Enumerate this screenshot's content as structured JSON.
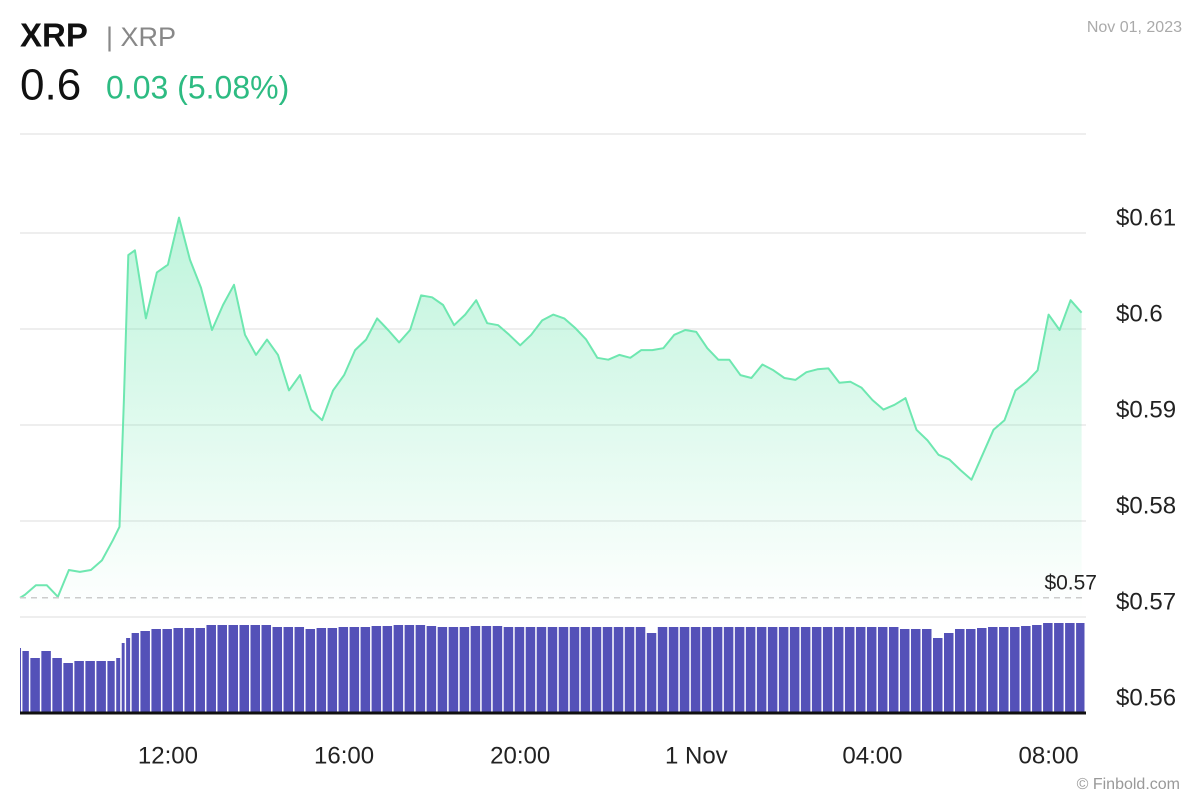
{
  "chart_data": {
    "type": "line",
    "title": "XRP",
    "subtitle": "| XRP",
    "price": "0.6",
    "change": "0.03 (5.08%)",
    "date": "Nov 01, 2023",
    "credit": "© Finbold.com",
    "color": "#6ee7b0",
    "volume_color": "#5451b8",
    "x": [
      8.64,
      8.75,
      9.0,
      9.25,
      9.5,
      9.75,
      10.0,
      10.25,
      10.5,
      10.75,
      10.9,
      11.0,
      11.1,
      11.25,
      11.5,
      11.75,
      12.0,
      12.25,
      12.5,
      12.75,
      13.0,
      13.25,
      13.5,
      13.75,
      14.0,
      14.25,
      14.5,
      14.75,
      15.0,
      15.25,
      15.5,
      15.75,
      16.0,
      16.25,
      16.5,
      16.75,
      17.0,
      17.25,
      17.5,
      17.75,
      18.0,
      18.25,
      18.5,
      18.75,
      19.0,
      19.25,
      19.5,
      19.75,
      20.0,
      20.25,
      20.5,
      20.75,
      21.0,
      21.25,
      21.5,
      21.75,
      22.0,
      22.25,
      22.5,
      22.75,
      23.0,
      23.25,
      23.5,
      23.75,
      24.0,
      24.25,
      24.5,
      24.75,
      25.0,
      25.25,
      25.5,
      25.75,
      26.0,
      26.25,
      26.5,
      26.75,
      27.0,
      27.25,
      27.5,
      27.75,
      28.0,
      28.25,
      28.5,
      28.75,
      29.0,
      29.25,
      29.5,
      29.75,
      30.0,
      30.25,
      30.5,
      30.75,
      31.0,
      31.25,
      31.5,
      31.75,
      32.0,
      32.25,
      32.5,
      32.75
    ],
    "values": [
      0.572,
      0.5723,
      0.5733,
      0.5733,
      0.5721,
      0.5749,
      0.5747,
      0.5749,
      0.5759,
      0.578,
      0.5794,
      0.5926,
      0.6077,
      0.6082,
      0.6011,
      0.6059,
      0.6067,
      0.6116,
      0.6072,
      0.6043,
      0.5999,
      0.6025,
      0.6046,
      0.5994,
      0.5973,
      0.5989,
      0.5973,
      0.5936,
      0.5952,
      0.5916,
      0.5905,
      0.5936,
      0.5952,
      0.5978,
      0.5989,
      0.6011,
      0.5999,
      0.5986,
      0.5999,
      0.6035,
      0.6033,
      0.6025,
      0.6004,
      0.6015,
      0.603,
      0.6006,
      0.6004,
      0.5994,
      0.5983,
      0.5994,
      0.6009,
      0.6015,
      0.6011,
      0.6001,
      0.5989,
      0.597,
      0.5968,
      0.5973,
      0.597,
      0.5978,
      0.5978,
      0.598,
      0.5994,
      0.5999,
      0.5997,
      0.598,
      0.5968,
      0.5968,
      0.5952,
      0.5949,
      0.5963,
      0.5957,
      0.5949,
      0.5947,
      0.5955,
      0.5958,
      0.5959,
      0.5944,
      0.5945,
      0.5939,
      0.5926,
      0.5916,
      0.5921,
      0.5928,
      0.5895,
      0.5884,
      0.5869,
      0.5864,
      0.5853,
      0.5843,
      0.5869,
      0.5895,
      0.5905,
      0.5936,
      0.5945,
      0.5957,
      0.6015,
      0.5999,
      0.603,
      0.6017
    ],
    "volume": [
      65,
      62,
      55,
      62,
      55,
      50,
      52,
      52,
      52,
      52,
      55,
      70,
      75,
      80,
      82,
      84,
      84,
      85,
      85,
      85,
      88,
      88,
      88,
      88,
      88,
      88,
      86,
      86,
      86,
      84,
      85,
      85,
      86,
      86,
      86,
      87,
      87,
      88,
      88,
      88,
      87,
      86,
      86,
      86,
      87,
      87,
      87,
      86,
      86,
      86,
      86,
      86,
      86,
      86,
      86,
      86,
      86,
      86,
      86,
      86,
      80,
      86,
      86,
      86,
      86,
      86,
      86,
      86,
      86,
      86,
      86,
      86,
      86,
      86,
      86,
      86,
      86,
      86,
      86,
      86,
      86,
      86,
      86,
      84,
      84,
      84,
      75,
      80,
      84,
      84,
      85,
      86,
      86,
      86,
      87,
      88,
      90,
      90,
      90,
      90
    ],
    "vlim": [
      0,
      100
    ],
    "xlim": [
      8.64,
      32.85
    ],
    "xticks": [
      {
        "value": 12,
        "label": "12:00"
      },
      {
        "value": 16,
        "label": "16:00"
      },
      {
        "value": 20,
        "label": "20:00"
      },
      {
        "value": 24,
        "label": "1 Nov"
      },
      {
        "value": 28,
        "label": "04:00"
      },
      {
        "value": 32,
        "label": "08:00"
      }
    ],
    "ylim": [
      0.56,
      0.62
    ],
    "yticks": [
      {
        "value": 0.56,
        "label": "$0.56"
      },
      {
        "value": 0.57,
        "label": "$0.57"
      },
      {
        "value": 0.58,
        "label": "$0.58"
      },
      {
        "value": 0.59,
        "label": "$0.59"
      },
      {
        "value": 0.6,
        "label": "$0.6"
      },
      {
        "value": 0.61,
        "label": "$0.61"
      }
    ],
    "reference": {
      "value": 0.572,
      "label": "$0.57"
    },
    "grid": true
  }
}
